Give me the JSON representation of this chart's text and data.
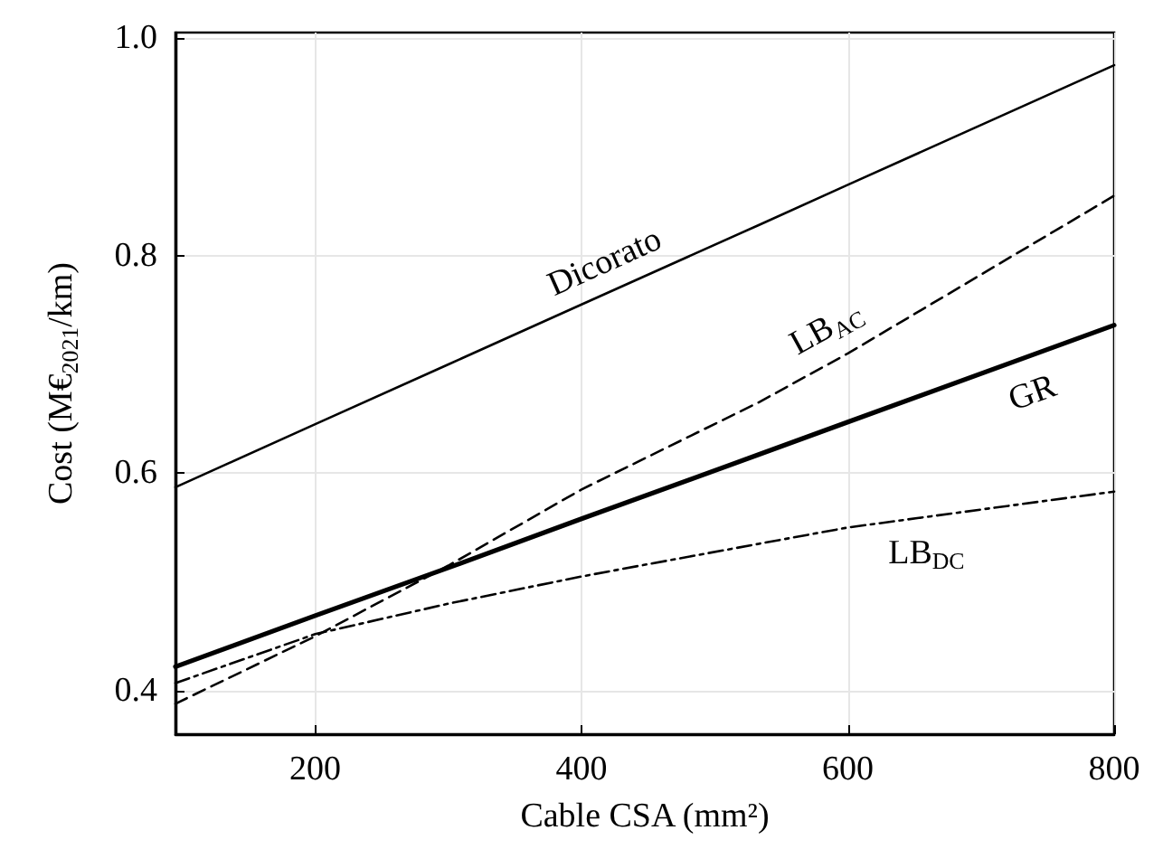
{
  "chart_data": {
    "type": "line",
    "xlabel": "Cable CSA (mm²)",
    "ylabel": "Cost (M€$_{2021}$/km)",
    "x": [
      95,
      200,
      300,
      400,
      533,
      600,
      800
    ],
    "series": [
      {
        "name": "Dicorato",
        "color": "#000000",
        "line_style": "solid",
        "values": [
          0.587,
          0.645,
          0.7,
          0.755,
          0.828,
          0.865,
          0.975
        ]
      },
      {
        "name": "LB$_{AC}$",
        "color": "#000000",
        "line_style": "dashed",
        "values": [
          0.388,
          0.45,
          0.515,
          0.585,
          0.665,
          0.71,
          0.855
        ]
      },
      {
        "name": "GR",
        "color": "#000000",
        "line_style": "solid",
        "values": [
          0.422,
          0.469,
          0.513,
          0.558,
          0.617,
          0.647,
          0.736
        ]
      },
      {
        "name": "LB$_{DC}$",
        "color": "#000000",
        "line_style": "dashdot",
        "values": [
          0.407,
          0.452,
          0.48,
          0.505,
          0.535,
          0.55,
          0.583
        ]
      }
    ],
    "xlim": [
      95,
      800
    ],
    "xticks": [
      200,
      400,
      600,
      800
    ],
    "ylim": [
      0.36,
      1.005
    ],
    "yticks": [
      0.4,
      0.6,
      0.8,
      {
        "value": 1.0,
        "label": "1.0"
      }
    ],
    "grid": true
  }
}
